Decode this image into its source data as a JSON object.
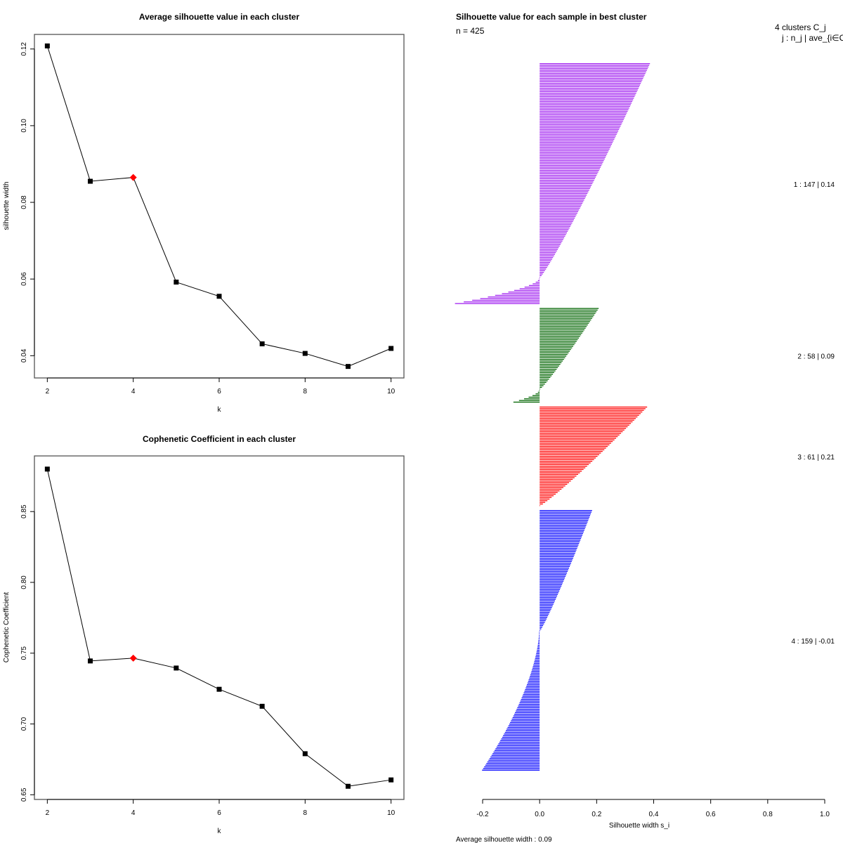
{
  "chart_data": [
    {
      "type": "line",
      "title": "Average silhouette value in each cluster",
      "xlabel": "k",
      "ylabel": "silhouette width",
      "x": [
        2,
        3,
        4,
        5,
        6,
        7,
        8,
        9,
        10
      ],
      "values": [
        0.1208,
        0.0855,
        0.0865,
        0.0592,
        0.0555,
        0.0431,
        0.0406,
        0.0372,
        0.0419
      ],
      "highlight_x": 4,
      "highlight_color": "#ff0000",
      "xticks": [
        "2",
        "4",
        "6",
        "8",
        "10"
      ],
      "yticks": [
        "0.04",
        "0.06",
        "0.08",
        "0.10",
        "0.12"
      ],
      "xlim": [
        1.7,
        10.3
      ],
      "ylim": [
        0.0342,
        0.1238
      ],
      "grid": false
    },
    {
      "type": "line",
      "title": "Cophenetic Coefficient in each cluster",
      "xlabel": "k",
      "ylabel": "Cophenetic Coefficient",
      "x": [
        2,
        3,
        4,
        5,
        6,
        7,
        8,
        9,
        10
      ],
      "values": [
        0.88,
        0.7445,
        0.7465,
        0.7395,
        0.7245,
        0.7125,
        0.679,
        0.656,
        0.6605
      ],
      "highlight_x": 4,
      "highlight_color": "#ff0000",
      "xticks": [
        "2",
        "4",
        "6",
        "8",
        "10"
      ],
      "yticks": [
        "0.65",
        "0.70",
        "0.75",
        "0.80",
        "0.85"
      ],
      "xlim": [
        1.7,
        10.3
      ],
      "ylim": [
        0.6467,
        0.8893
      ],
      "grid": false
    },
    {
      "type": "bar",
      "orientation": "horizontal",
      "title": "Silhouette value for each sample in best cluster",
      "subtitle": "n = 425",
      "xlabel": "Silhouette width s_i",
      "xticks": [
        "-0.2",
        "0.0",
        "0.2",
        "0.4",
        "0.6",
        "0.8",
        "1.0"
      ],
      "xlim": [
        -0.2,
        1.0
      ],
      "header_line1": "4  clusters  C_j",
      "header_line2": "j :  n_j | ave_{i∈Cj} s_i",
      "footer": "Average silhouette width :  0.09",
      "clusters": [
        {
          "id": 1,
          "n": 147,
          "avg": 0.14,
          "label": "1 :   147  |  0.14",
          "color": "#a020f0",
          "max": 0.385,
          "min": -0.295,
          "n_negative": 16
        },
        {
          "id": 2,
          "n": 58,
          "avg": 0.09,
          "label": "2 :   58  |  0.09",
          "color": "#006400",
          "max": 0.205,
          "min": -0.09,
          "n_negative": 8
        },
        {
          "id": 3,
          "n": 61,
          "avg": 0.21,
          "label": "3 :   61  |  0.21",
          "color": "#ff0000",
          "max": 0.375,
          "min": 0.005,
          "n_negative": 0
        },
        {
          "id": 4,
          "n": 159,
          "avg": -0.01,
          "label": "4 :   159  |  -0.01",
          "color": "#0000ff",
          "max": 0.182,
          "min": -0.2,
          "n_negative": 85
        }
      ]
    }
  ]
}
